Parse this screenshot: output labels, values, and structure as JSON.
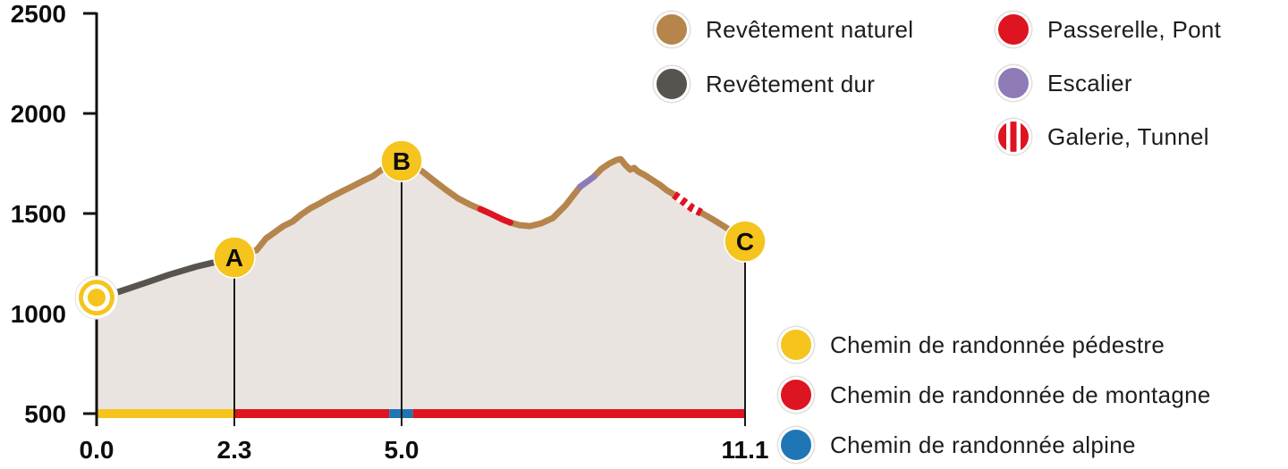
{
  "chart_data": {
    "type": "area",
    "title": "",
    "y_axis": {
      "ticks": [
        2500,
        2000,
        1500,
        1000,
        500
      ],
      "min": 500,
      "max": 2500
    },
    "x_axis": {
      "tick_labels": [
        "0.0",
        "2.3",
        "5.0",
        "11.1"
      ],
      "tick_km": [
        0,
        2.3,
        5.0,
        11.1
      ],
      "min_km": 0,
      "max_km": 11.1
    },
    "profile": {
      "points": [
        [
          0.0,
          1080
        ],
        [
          0.33,
          1105
        ],
        [
          0.78,
          1150
        ],
        [
          1.22,
          1195
        ],
        [
          1.67,
          1235
        ],
        [
          2.05,
          1262
        ],
        [
          2.3,
          1281
        ],
        [
          2.66,
          1317
        ],
        [
          2.81,
          1375
        ],
        [
          2.95,
          1406
        ],
        [
          3.09,
          1437
        ],
        [
          3.24,
          1460
        ],
        [
          3.38,
          1495
        ],
        [
          3.53,
          1527
        ],
        [
          3.67,
          1549
        ],
        [
          3.82,
          1576
        ],
        [
          3.96,
          1598
        ],
        [
          4.1,
          1620
        ],
        [
          4.25,
          1643
        ],
        [
          4.39,
          1665
        ],
        [
          4.54,
          1687
        ],
        [
          4.68,
          1719
        ],
        [
          4.83,
          1741
        ],
        [
          5.0,
          1763
        ],
        [
          5.18,
          1745
        ],
        [
          5.37,
          1710
        ],
        [
          5.57,
          1665
        ],
        [
          5.78,
          1620
        ],
        [
          6.0,
          1576
        ],
        [
          6.21,
          1545
        ],
        [
          6.4,
          1522
        ],
        [
          6.61,
          1495
        ],
        [
          6.8,
          1469
        ],
        [
          6.93,
          1455
        ],
        [
          7.09,
          1442
        ],
        [
          7.28,
          1437
        ],
        [
          7.48,
          1451
        ],
        [
          7.69,
          1478
        ],
        [
          7.91,
          1540
        ],
        [
          8.12,
          1616
        ],
        [
          8.17,
          1634
        ],
        [
          8.3,
          1660
        ],
        [
          8.41,
          1683
        ],
        [
          8.55,
          1723
        ],
        [
          8.69,
          1750
        ],
        [
          8.82,
          1768
        ],
        [
          8.89,
          1772
        ],
        [
          8.98,
          1741
        ],
        [
          9.06,
          1719
        ],
        [
          9.13,
          1728
        ],
        [
          9.2,
          1710
        ],
        [
          9.32,
          1692
        ],
        [
          9.44,
          1670
        ],
        [
          9.59,
          1643
        ],
        [
          9.71,
          1616
        ],
        [
          9.84,
          1594
        ],
        [
          10.0,
          1561
        ],
        [
          10.16,
          1527
        ],
        [
          10.32,
          1504
        ],
        [
          10.51,
          1473
        ],
        [
          10.72,
          1437
        ],
        [
          10.91,
          1402
        ],
        [
          11.1,
          1361
        ]
      ],
      "surface_segments": [
        {
          "from": 0,
          "to": 2.3,
          "surface": "dur"
        },
        {
          "from": 2.3,
          "to": 6.4,
          "surface": "naturel"
        },
        {
          "from": 6.4,
          "to": 6.93,
          "surface": "passerelle"
        },
        {
          "from": 6.93,
          "to": 8.17,
          "surface": "naturel"
        },
        {
          "from": 8.17,
          "to": 8.41,
          "surface": "escalier"
        },
        {
          "from": 8.41,
          "to": 9.84,
          "surface": "naturel"
        },
        {
          "from": 9.84,
          "to": 10.32,
          "surface": "galerie"
        },
        {
          "from": 10.32,
          "to": 11.1,
          "surface": "naturel"
        }
      ],
      "markers": [
        {
          "label": "",
          "type": "start",
          "km": 0,
          "elev": 1080
        },
        {
          "label": "A",
          "type": "waypoint",
          "km": 2.3,
          "elev": 1281
        },
        {
          "label": "B",
          "type": "waypoint",
          "km": 5.0,
          "elev": 1763
        },
        {
          "label": "C",
          "type": "waypoint",
          "km": 11.1,
          "elev": 1361
        }
      ]
    },
    "category_bar": [
      {
        "from": 0,
        "to": 2.3,
        "category": "pedestre"
      },
      {
        "from": 2.3,
        "to": 4.8,
        "category": "montagne"
      },
      {
        "from": 4.8,
        "to": 5.2,
        "category": "alpine"
      },
      {
        "from": 5.2,
        "to": 11.1,
        "category": "montagne"
      }
    ]
  },
  "colors": {
    "naturel": "#B5854C",
    "dur": "#57534E",
    "passerelle": "#DE1421",
    "escalier": "#8E7AB7",
    "galerie": "#DE1421",
    "pedestre": "#F5C41D",
    "montagne": "#DE1421",
    "alpine": "#1E76B5",
    "area_fill": "#E9E4E0",
    "axis": "#111111",
    "marker_line": "#1A1A1A",
    "text": "#0D0D0D",
    "legend_text": "#1D1D1B",
    "swatch_ring": "#E2DEDA"
  },
  "legend_surface": {
    "items": [
      {
        "label": "Revêtement naturel",
        "color_key": "naturel"
      },
      {
        "label": "Revêtement dur",
        "color_key": "dur"
      }
    ]
  },
  "legend_obstacles": {
    "items": [
      {
        "label": "Passerelle, Pont",
        "color_key": "passerelle"
      },
      {
        "label": "Escalier",
        "color_key": "escalier"
      },
      {
        "label": "Galerie, Tunnel",
        "color_key": "galerie",
        "striped": true
      }
    ]
  },
  "legend_trails": {
    "items": [
      {
        "label": "Chemin de randonnée pédestre",
        "color_key": "pedestre"
      },
      {
        "label": "Chemin de randonnée de montagne",
        "color_key": "montagne"
      },
      {
        "label": "Chemin de randonnée alpine",
        "color_key": "alpine"
      }
    ]
  }
}
